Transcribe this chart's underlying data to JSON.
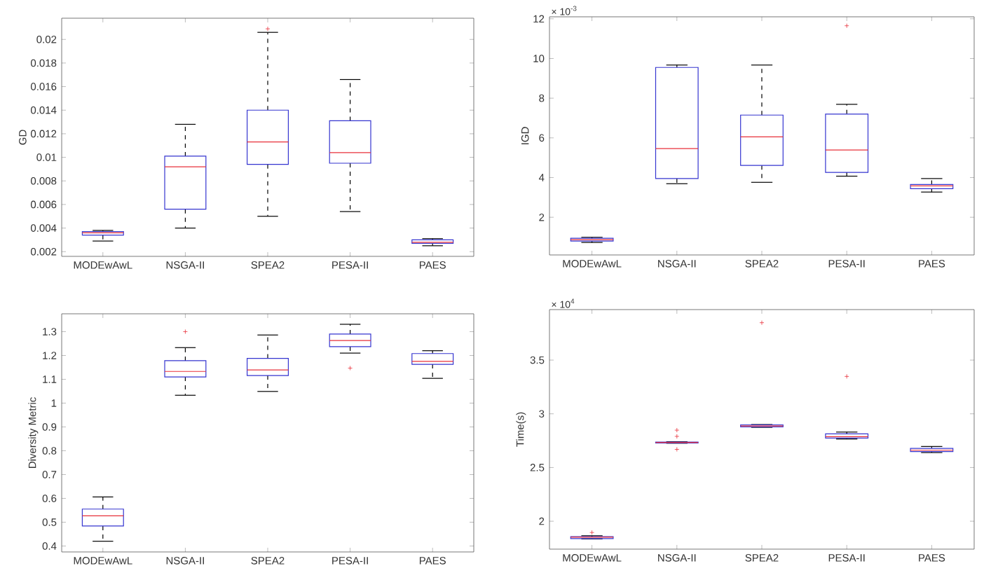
{
  "chart_data": [
    {
      "type": "box",
      "ylabel": "GD",
      "categories": [
        "MODEwAwL",
        "NSGA-II",
        "SPEA2",
        "PESA-II",
        "PAES"
      ],
      "boxes": [
        {
          "low": 0.0029,
          "q1": 0.0034,
          "median": 0.0036,
          "q3": 0.0037,
          "high": 0.0038
        },
        {
          "low": 0.004,
          "q1": 0.0056,
          "median": 0.0092,
          "q3": 0.0101,
          "high": 0.0128
        },
        {
          "low": 0.005,
          "q1": 0.0094,
          "median": 0.0113,
          "q3": 0.014,
          "high": 0.0206,
          "outliers": [
            0.0209
          ]
        },
        {
          "low": 0.0054,
          "q1": 0.0095,
          "median": 0.0104,
          "q3": 0.0131,
          "high": 0.0166
        },
        {
          "low": 0.0025,
          "q1": 0.0027,
          "median": 0.0028,
          "q3": 0.003,
          "high": 0.0031
        }
      ],
      "ylim": [
        0.0016,
        0.0218
      ],
      "yticks": [
        0.002,
        0.004,
        0.006,
        0.008,
        0.01,
        0.012,
        0.014,
        0.016,
        0.018,
        0.02
      ],
      "line_style": "dashed"
    },
    {
      "type": "box",
      "ylabel": "IGD",
      "annotations": [
        "× 10$^{-3}$"
      ],
      "categories": [
        "MODEwAwL",
        "NSGA-II",
        "SPEA2",
        "PESA-II",
        "PAES"
      ],
      "boxes": [
        {
          "low": 0.73,
          "q1": 0.8,
          "median": 0.87,
          "q3": 0.94,
          "high": 0.99
        },
        {
          "low": 3.69,
          "q1": 3.95,
          "median": 5.46,
          "q3": 9.55,
          "high": 9.67
        },
        {
          "low": 3.76,
          "q1": 4.61,
          "median": 6.05,
          "q3": 7.15,
          "high": 9.67
        },
        {
          "low": 4.07,
          "q1": 4.26,
          "median": 5.39,
          "q3": 7.2,
          "high": 7.69,
          "outliers": [
            11.65
          ]
        },
        {
          "low": 3.27,
          "q1": 3.44,
          "median": 3.58,
          "q3": 3.65,
          "high": 3.95
        }
      ],
      "ylim": [
        0.1,
        12.1
      ],
      "yticks": [
        2,
        4,
        6,
        8,
        10,
        12
      ],
      "line_style": "dashed"
    },
    {
      "type": "box",
      "ylabel": "Diversity Metric",
      "categories": [
        "MODEwAwL",
        "NSGA-II",
        "SPEA2",
        "PESA-II",
        "PAES"
      ],
      "boxes": [
        {
          "low": 0.42,
          "q1": 0.484,
          "median": 0.527,
          "q3": 0.555,
          "high": 0.606
        },
        {
          "low": 1.033,
          "q1": 1.11,
          "median": 1.133,
          "q3": 1.178,
          "high": 1.233,
          "outliers": [
            1.3
          ]
        },
        {
          "low": 1.049,
          "q1": 1.116,
          "median": 1.139,
          "q3": 1.188,
          "high": 1.286
        },
        {
          "low": 1.21,
          "q1": 1.237,
          "median": 1.263,
          "q3": 1.29,
          "high": 1.331,
          "outliers": [
            1.147
          ]
        },
        {
          "low": 1.104,
          "q1": 1.163,
          "median": 1.175,
          "q3": 1.208,
          "high": 1.22
        }
      ],
      "ylim": [
        0.375,
        1.375
      ],
      "yticks": [
        0.4,
        0.5,
        0.6,
        0.7,
        0.8,
        0.9,
        1,
        1.1,
        1.2,
        1.3
      ],
      "line_style": "dashed"
    },
    {
      "type": "box",
      "ylabel": "Time(s)",
      "annotations": [
        "× 10$^{4}$"
      ],
      "categories": [
        "MODEwAwL",
        "NSGA-II",
        "SPEA2",
        "PESA-II",
        "PAES"
      ],
      "boxes": [
        {
          "low": 1.835,
          "q1": 1.839,
          "median": 1.852,
          "q3": 1.857,
          "high": 1.865,
          "outliers": [
            1.895
          ]
        },
        {
          "low": 2.726,
          "q1": 2.729,
          "median": 2.733,
          "q3": 2.737,
          "high": 2.74,
          "outliers": [
            2.848,
            2.79,
            2.669
          ]
        },
        {
          "low": 2.874,
          "q1": 2.878,
          "median": 2.887,
          "q3": 2.896,
          "high": 2.9,
          "outliers": [
            3.848
          ]
        },
        {
          "low": 2.765,
          "q1": 2.774,
          "median": 2.787,
          "q3": 2.813,
          "high": 2.83,
          "outliers": [
            3.348
          ]
        },
        {
          "low": 2.639,
          "q1": 2.648,
          "median": 2.661,
          "q3": 2.678,
          "high": 2.696
        }
      ],
      "ylim": [
        1.74,
        3.97
      ],
      "yticks": [
        2,
        2.5,
        3,
        3.5
      ],
      "line_style": "dashed"
    }
  ]
}
